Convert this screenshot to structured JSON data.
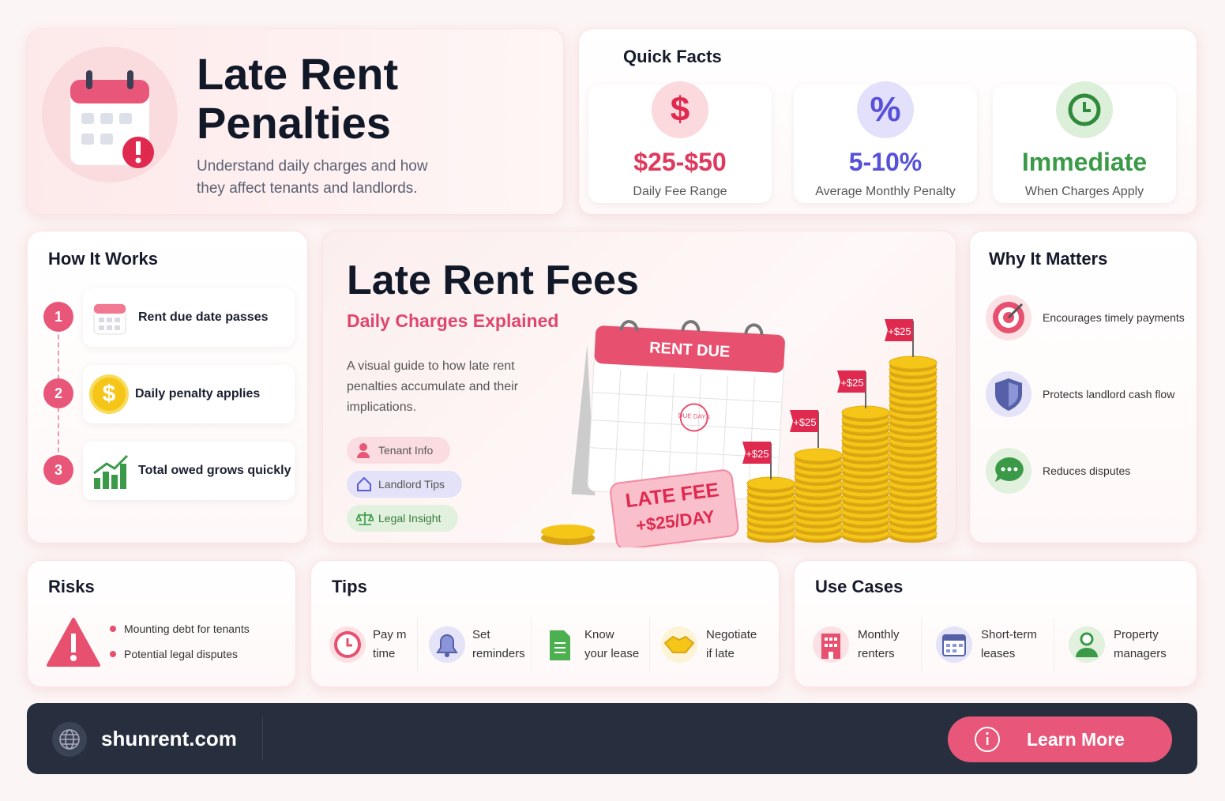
{
  "header": {
    "title": "Late Rent Penalties",
    "subtitle": "Understand daily charges and how they affect tenants and landlords."
  },
  "quick_facts": {
    "title": "Quick Facts",
    "items": [
      {
        "icon": "$",
        "value": "$25-$50",
        "label": "Daily Fee Range"
      },
      {
        "icon": "%",
        "value": "5-10%",
        "label": "Average Monthly Penalty"
      },
      {
        "value": "Immediate",
        "label": "When Charges Apply"
      }
    ]
  },
  "how_it_works": {
    "title": "How It Works",
    "steps": [
      {
        "number": "1",
        "text": "Rent due date passes"
      },
      {
        "number": "2",
        "icon": "$",
        "text": "Daily penalty applies"
      },
      {
        "number": "3",
        "text": "Total owed grows quickly"
      }
    ]
  },
  "hero": {
    "title": "Late Rent Fees",
    "subtitle": "Daily Charges Explained",
    "description": "A visual guide to how late rent penalties accumulate and their implications.",
    "tags": [
      "Tenant Info",
      "Landlord Tips",
      "Legal Insight"
    ],
    "illustration": {
      "calendar_header": "RENT DUE",
      "stamp": "DUE DAYS",
      "fee_label": [
        "LATE FEE",
        "+$25/DAY"
      ],
      "flags": [
        "+$25",
        "+$25",
        "+$25",
        "+$25"
      ]
    }
  },
  "why_it_matters": {
    "title": "Why It Matters",
    "items": [
      "Encourages timely payments",
      "Protects landlord cash flow",
      "Reduces disputes"
    ]
  },
  "risks": {
    "title": "Risks",
    "items": [
      "Mounting debt for tenants",
      "Potential legal disputes"
    ]
  },
  "tips": {
    "title": "Tips",
    "items": [
      "Pay m time",
      "Set reminders",
      "Know your lease",
      "Negotiate if late"
    ]
  },
  "use_cases": {
    "title": "Use Cases",
    "items": [
      "Monthly renters",
      "Short-term leases",
      "Property managers"
    ]
  },
  "footer": {
    "site": "shunrent.com",
    "button": "Learn More"
  }
}
